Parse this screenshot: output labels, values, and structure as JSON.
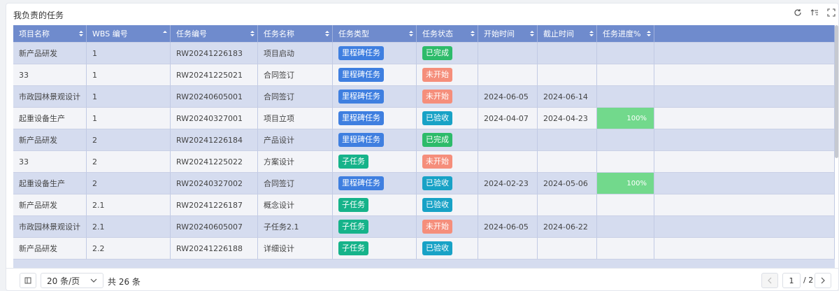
{
  "header": {
    "title": "我负责的任务"
  },
  "table": {
    "columns": [
      "项目名称",
      "WBS 编号",
      "任务编号",
      "任务名称",
      "任务类型",
      "任务状态",
      "开始时间",
      "截止时间",
      "任务进度%"
    ],
    "rows": [
      [
        "新产品研发",
        "1",
        "RW20241226183",
        "项目启动",
        {
          "text": "里程碑任务",
          "color": "#3f7fe0"
        },
        {
          "text": "已完成",
          "color": "#2dbb6a"
        },
        null,
        null,
        null
      ],
      [
        "33",
        "1",
        "RW20241225021",
        "合同签订",
        {
          "text": "里程碑任务",
          "color": "#3f7fe0"
        },
        {
          "text": "未开始",
          "color": "#f58e7b"
        },
        null,
        null,
        null
      ],
      [
        "市政园林景观设计",
        "1",
        "RW20240605001",
        "合同签订",
        {
          "text": "里程碑任务",
          "color": "#3f7fe0"
        },
        {
          "text": "未开始",
          "color": "#f58e7b"
        },
        "2024-06-05",
        "2024-06-14",
        null
      ],
      [
        "起重设备生产",
        "1",
        "RW20240327001",
        "项目立项",
        {
          "text": "里程碑任务",
          "color": "#3f7fe0"
        },
        {
          "text": "已验收",
          "color": "#18a2c6"
        },
        "2024-04-07",
        "2024-04-23",
        "100%"
      ],
      [
        "新产品研发",
        "2",
        "RW20241226184",
        "产品设计",
        {
          "text": "里程碑任务",
          "color": "#3f7fe0"
        },
        {
          "text": "已完成",
          "color": "#2dbb6a"
        },
        null,
        null,
        null
      ],
      [
        "33",
        "2",
        "RW20241225022",
        "方案设计",
        {
          "text": "子任务",
          "color": "#16b38a"
        },
        {
          "text": "未开始",
          "color": "#f58e7b"
        },
        null,
        null,
        null
      ],
      [
        "起重设备生产",
        "2",
        "RW20240327002",
        "合同签订",
        {
          "text": "里程碑任务",
          "color": "#3f7fe0"
        },
        {
          "text": "已验收",
          "color": "#18a2c6"
        },
        "2024-02-23",
        "2024-05-06",
        "100%"
      ],
      [
        "新产品研发",
        "2.1",
        "RW20241226187",
        "概念设计",
        {
          "text": "子任务",
          "color": "#16b38a"
        },
        {
          "text": "已验收",
          "color": "#18a2c6"
        },
        null,
        null,
        null
      ],
      [
        "市政园林景观设计",
        "2.1",
        "RW20240605007",
        "子任务2.1",
        {
          "text": "子任务",
          "color": "#16b38a"
        },
        {
          "text": "未开始",
          "color": "#f58e7b"
        },
        "2024-06-05",
        "2024-06-22",
        null
      ],
      [
        "新产品研发",
        "2.2",
        "RW20241226188",
        "详细设计",
        {
          "text": "子任务",
          "color": "#16b38a"
        },
        {
          "text": "已验收",
          "color": "#18a2c6"
        },
        null,
        null,
        null
      ]
    ]
  },
  "pagination": {
    "page_size": "20 条/页",
    "total": "共 26 条",
    "current_page": "1",
    "page_count": "/ 2"
  }
}
